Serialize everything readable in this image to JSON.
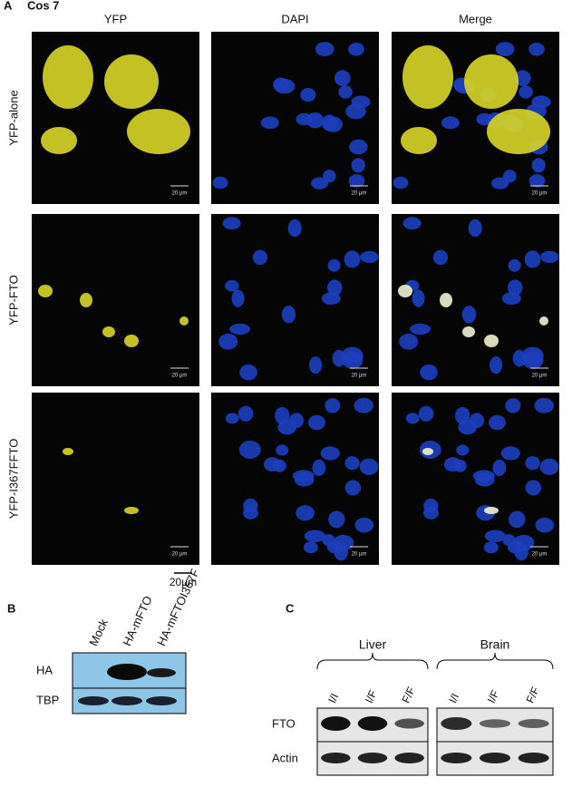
{
  "panel_a": {
    "letter": "A",
    "cell_line": "Cos 7",
    "columns": [
      "YFP",
      "DAPI",
      "Merge"
    ],
    "rows": [
      {
        "label": "YFP-alone",
        "scale_labels": [
          "20 µm",
          "20 µm",
          "20 µm"
        ]
      },
      {
        "label": "YFP-FTO",
        "scale_labels": [
          "20 µm",
          "20 µm",
          "20 µm"
        ]
      },
      {
        "label": "YFP-I367FFTO",
        "scale_labels": [
          "20 µm",
          "20 µm",
          "20 µm"
        ]
      }
    ],
    "scale_bar": "20µm"
  },
  "panel_b": {
    "letter": "B",
    "lanes": [
      "Mock",
      "HA-mFTO",
      "HA-mFTOI367F"
    ],
    "rows": [
      "HA",
      "TBP"
    ]
  },
  "panel_c": {
    "letter": "C",
    "groups": [
      {
        "name": "Liver",
        "lanes": [
          "I/I",
          "I/F",
          "F/F"
        ]
      },
      {
        "name": "Brain",
        "lanes": [
          "I/I",
          "I/F",
          "F/F"
        ]
      }
    ],
    "rows": [
      "FTO",
      "Actin"
    ]
  }
}
